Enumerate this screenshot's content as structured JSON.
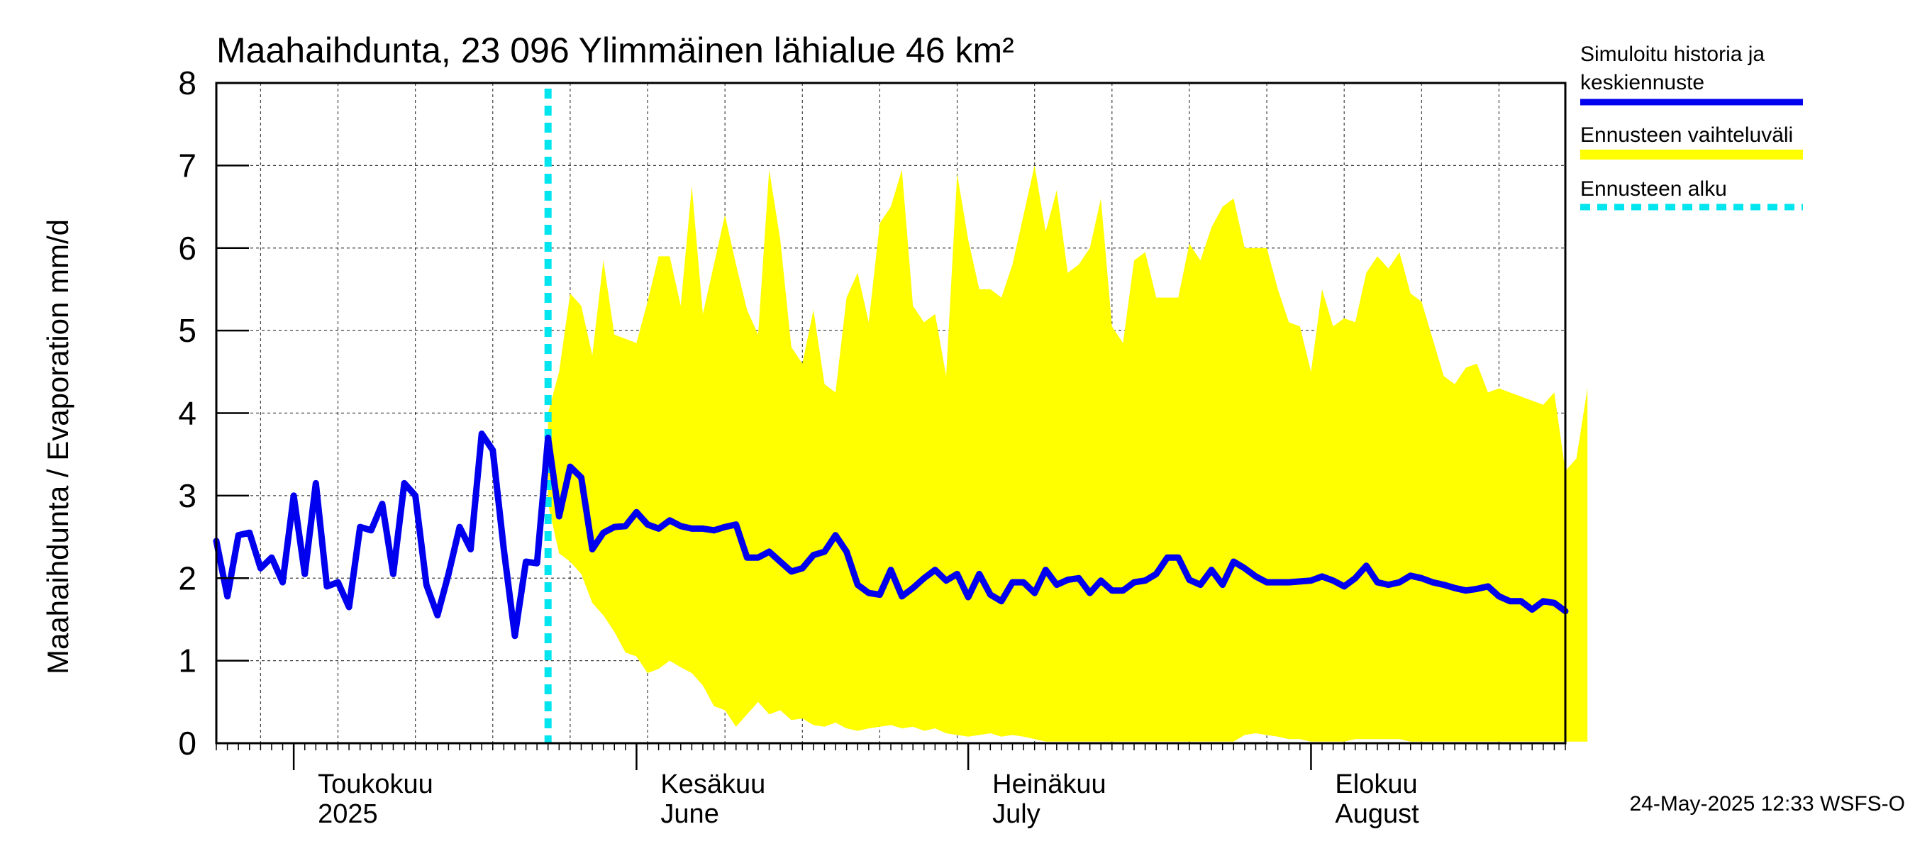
{
  "chart_data": {
    "type": "line",
    "title": "Maahaihdunta, 23 096 Ylimmäinen lähialue 46 km²",
    "ylabel": "Maahaihdunta / Evaporation   mm/d",
    "xlabel": "",
    "ylim": [
      0,
      8
    ],
    "yticks": [
      "0",
      "1",
      "2",
      "3",
      "4",
      "5",
      "6",
      "7",
      "8"
    ],
    "xlim": [
      "2025-04-24",
      "2025-08-24"
    ],
    "grid": true,
    "x_month_ticks": [
      {
        "date": "2025-05-01",
        "label_fi": "Toukokuu",
        "label_en": "2025"
      },
      {
        "date": "2025-06-01",
        "label_fi": "Kesäkuu",
        "label_en": "June"
      },
      {
        "date": "2025-07-01",
        "label_fi": "Heinäkuu",
        "label_en": "July"
      },
      {
        "date": "2025-08-01",
        "label_fi": "Elokuu",
        "label_en": "August"
      }
    ],
    "forecast_start": "2025-05-24",
    "legend": {
      "placement": "right",
      "entries": [
        {
          "line1": "Simuloitu historia ja",
          "line2": "keskiennuste",
          "color": "#0000ee",
          "style": "solid"
        },
        {
          "line1": "Ennusteen vaihteluväli",
          "line2": "",
          "color": "#ffff00",
          "style": "band"
        },
        {
          "line1": "Ennusteen alku",
          "line2": "",
          "color": "#00e5ee",
          "style": "dashed"
        }
      ]
    },
    "series": [
      {
        "name": "Simuloitu historia ja keskiennuste",
        "color": "#0000ee",
        "start_date": "2025-04-24",
        "values": [
          2.45,
          1.78,
          2.52,
          2.55,
          2.12,
          2.25,
          1.95,
          3.0,
          2.05,
          3.15,
          1.9,
          1.95,
          1.65,
          2.62,
          2.58,
          2.9,
          2.05,
          3.15,
          3.0,
          1.92,
          1.55,
          2.05,
          2.62,
          2.35,
          3.75,
          3.55,
          2.35,
          1.3,
          2.2,
          2.18,
          3.7,
          2.75,
          3.35,
          3.22,
          2.35,
          2.55,
          2.62,
          2.63,
          2.8,
          2.65,
          2.6,
          2.7,
          2.63,
          2.6,
          2.6,
          2.58,
          2.62,
          2.65,
          2.25,
          2.25,
          2.32,
          2.2,
          2.08,
          2.12,
          2.28,
          2.32,
          2.52,
          2.32,
          1.92,
          1.82,
          1.8,
          2.1,
          1.78,
          1.88,
          2.0,
          2.1,
          1.97,
          2.05,
          1.77,
          2.05,
          1.8,
          1.72,
          1.95,
          1.95,
          1.82,
          2.1,
          1.92,
          1.98,
          2.0,
          1.82,
          1.97,
          1.85,
          1.85,
          1.95,
          1.97,
          2.05,
          2.25,
          2.25,
          1.98,
          1.92,
          2.1,
          1.92,
          2.2,
          2.12,
          2.02,
          1.95,
          1.95,
          1.95,
          1.96,
          1.97,
          2.02,
          1.97,
          1.9,
          2.0,
          2.15,
          1.95,
          1.92,
          1.95,
          2.03,
          2.0,
          1.95,
          1.92,
          1.88,
          1.85,
          1.87,
          1.9,
          1.78,
          1.72,
          1.72,
          1.62,
          1.72,
          1.7,
          1.6
        ]
      },
      {
        "name": "Ennusteen vaihteluväli (yläraja)",
        "color": "#ffff00",
        "start_date": "2025-05-24",
        "values": [
          4.0,
          4.5,
          5.45,
          5.3,
          4.7,
          5.85,
          4.95,
          4.9,
          4.85,
          5.35,
          5.9,
          5.9,
          5.3,
          6.75,
          5.2,
          5.8,
          6.4,
          5.8,
          5.25,
          4.95,
          6.95,
          6.1,
          4.8,
          4.6,
          5.25,
          4.35,
          4.25,
          5.4,
          5.7,
          5.1,
          6.3,
          6.5,
          6.95,
          5.3,
          5.1,
          5.2,
          4.45,
          6.9,
          6.1,
          5.5,
          5.5,
          5.4,
          5.8,
          6.4,
          7.0,
          6.2,
          6.7,
          5.7,
          5.8,
          6.0,
          6.6,
          5.05,
          4.85,
          5.85,
          5.95,
          5.4,
          5.4,
          5.4,
          6.05,
          5.85,
          6.25,
          6.5,
          6.6,
          6.0,
          6.0,
          6.0,
          5.5,
          5.1,
          5.05,
          4.5,
          5.5,
          5.05,
          5.15,
          5.1,
          5.7,
          5.9,
          5.75,
          5.95,
          5.45,
          5.35,
          4.9,
          4.45,
          4.35,
          4.55,
          4.6,
          4.25,
          4.3,
          4.25,
          4.2,
          4.15,
          4.1,
          4.25,
          3.3,
          3.45,
          4.3
        ]
      },
      {
        "name": "Ennusteen vaihteluväli (alaraja)",
        "color": "#ffff00",
        "start_date": "2025-05-24",
        "values": [
          2.9,
          2.3,
          2.2,
          2.05,
          1.7,
          1.55,
          1.35,
          1.1,
          1.05,
          0.85,
          0.9,
          1.0,
          0.92,
          0.85,
          0.7,
          0.45,
          0.4,
          0.2,
          0.35,
          0.5,
          0.35,
          0.4,
          0.28,
          0.3,
          0.22,
          0.2,
          0.25,
          0.18,
          0.15,
          0.18,
          0.2,
          0.22,
          0.18,
          0.2,
          0.15,
          0.18,
          0.12,
          0.1,
          0.08,
          0.1,
          0.12,
          0.08,
          0.1,
          0.08,
          0.05,
          0.02,
          0.02,
          0.02,
          0.02,
          0.02,
          0.02,
          0.02,
          0.02,
          0.02,
          0.02,
          0.02,
          0.02,
          0.02,
          0.02,
          0.02,
          0.02,
          0.02,
          0.02,
          0.1,
          0.12,
          0.1,
          0.08,
          0.05,
          0.05,
          0.02,
          0.02,
          0.02,
          0.02,
          0.05,
          0.05,
          0.05,
          0.05,
          0.05,
          0.02,
          0.02,
          0.02,
          0.02,
          0.02,
          0.02,
          0.02,
          0.02,
          0.02,
          0.02,
          0.02,
          0.02,
          0.02,
          0.02,
          0.02,
          0.02,
          0.02
        ]
      }
    ]
  },
  "footer": "24-May-2025 12:33 WSFS-O"
}
